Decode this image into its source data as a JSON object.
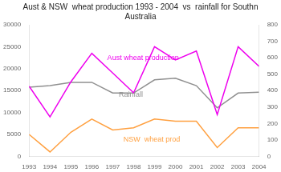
{
  "chart_data": {
    "type": "line",
    "title": "Aust & NSW  wheat production 1993 - 2004  vs  rainfall for Southn\nAustralia",
    "x": [
      1993,
      1994,
      1995,
      1996,
      1997,
      1998,
      1999,
      2000,
      2001,
      2002,
      2003,
      2004
    ],
    "xlim": [
      1993,
      2004
    ],
    "xticks": [
      1993,
      1994,
      1995,
      1996,
      1997,
      1998,
      1999,
      2000,
      2001,
      2002,
      2003,
      2004
    ],
    "ylim": [
      0,
      30000
    ],
    "yticks": [
      0,
      5000,
      10000,
      15000,
      20000,
      25000,
      30000
    ],
    "y2lim": [
      0,
      800
    ],
    "y2ticks": [
      0,
      100,
      200,
      300,
      400,
      500,
      600,
      700,
      800
    ],
    "grid": false,
    "series": [
      {
        "color": "#EE00EE",
        "values": [
          16000,
          9000,
          17000,
          23500,
          19000,
          14500,
          25000,
          22000,
          24000,
          9500,
          25000,
          20500
        ]
      },
      {
        "color": "#FFA040",
        "values": [
          5000,
          1000,
          5500,
          8500,
          6000,
          6500,
          8500,
          8000,
          8000,
          2000,
          6500,
          6500
        ]
      },
      {
        "color": "#909090",
        "axis": "y2",
        "values": [
          420,
          430,
          450,
          450,
          385,
          385,
          465,
          475,
          430,
          295,
          385,
          390
        ]
      }
    ],
    "annotations": [
      {
        "text": "Aust wheat production",
        "color": "#EE00EE"
      },
      {
        "text": "Rainfall",
        "color": "#909090"
      },
      {
        "text": "NSW  wheat prod",
        "color": "#FFA040"
      }
    ]
  }
}
